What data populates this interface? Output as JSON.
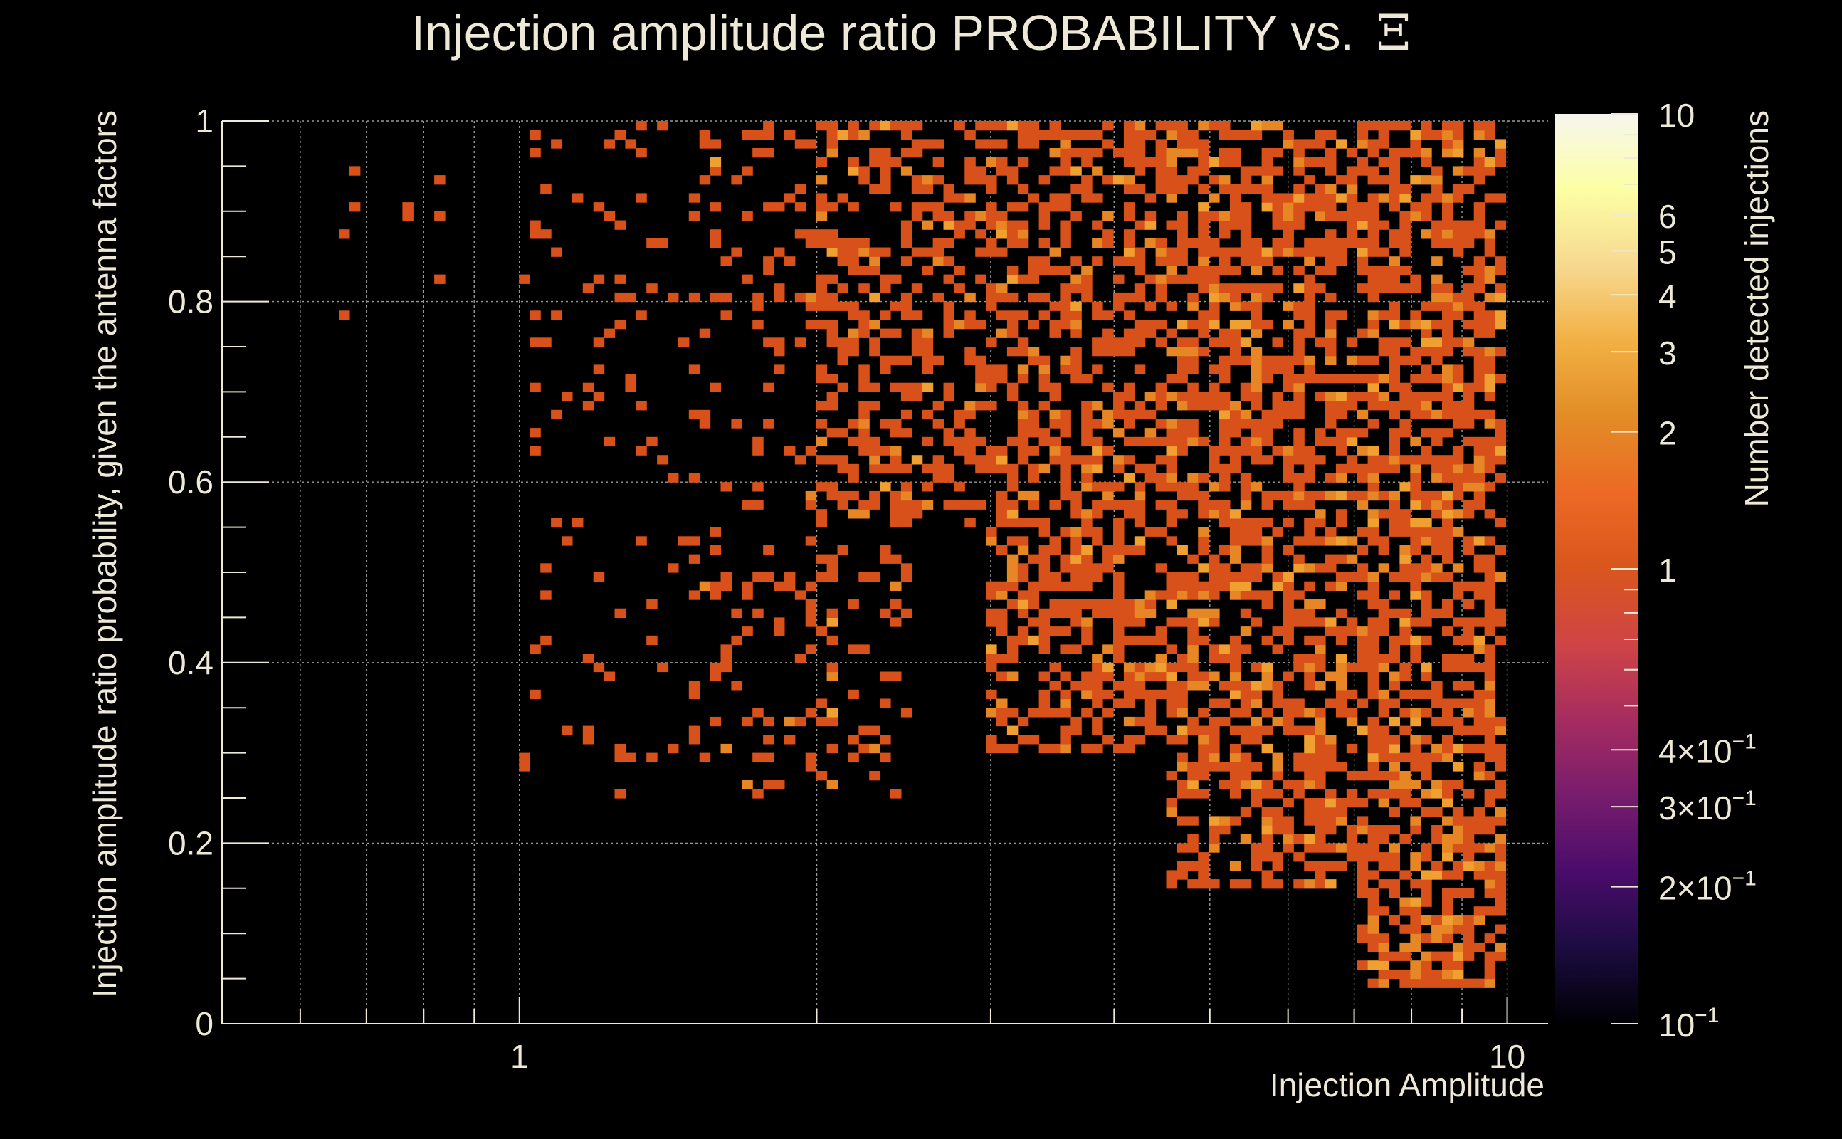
{
  "colors": {
    "background": "#000000",
    "text": "#eee9d6",
    "grid": "#9a9a9a",
    "palette": [
      "#000004",
      "#1b0c41",
      "#4a0c6b",
      "#781c6d",
      "#a52c60",
      "#cf4446",
      "#d9561d",
      "#ed6925",
      "#e28c26",
      "#f2b043",
      "#f7d890",
      "#fcffa4",
      "#f7f6ee"
    ]
  },
  "chart_data": {
    "type": "heatmap",
    "title": "Injection amplitude ratio PROBABILITY vs.",
    "title_symbol": "Ξ",
    "xlabel": "Injection Amplitude",
    "ylabel": "Injection amplitude ratio probability, given the antenna factors",
    "zlabel": "Number detected injections",
    "x_scale": "log",
    "xlim": [
      0.5,
      11
    ],
    "ylim": [
      0,
      1
    ],
    "zlim": [
      0.1,
      10
    ],
    "x_major_ticks": [
      {
        "value": 1,
        "label": "1"
      },
      {
        "value": 10,
        "label": "10"
      }
    ],
    "x_minor_ticks": [
      0.5,
      0.6,
      0.7,
      0.8,
      0.9,
      2,
      3,
      4,
      5,
      6,
      7,
      8,
      9
    ],
    "y_ticks": [
      {
        "value": 0,
        "label": "0"
      },
      {
        "value": 0.2,
        "label": "0.2"
      },
      {
        "value": 0.4,
        "label": "0.4"
      },
      {
        "value": 0.6,
        "label": "0.6"
      },
      {
        "value": 0.8,
        "label": "0.8"
      },
      {
        "value": 1,
        "label": "1"
      }
    ],
    "z_ticks": [
      {
        "value": 10,
        "mantissa": "10",
        "exponent": ""
      },
      {
        "value": 6,
        "mantissa": "6",
        "exponent": ""
      },
      {
        "value": 5,
        "mantissa": "5",
        "exponent": ""
      },
      {
        "value": 4,
        "mantissa": "4",
        "exponent": ""
      },
      {
        "value": 3,
        "mantissa": "3",
        "exponent": ""
      },
      {
        "value": 2,
        "mantissa": "2",
        "exponent": ""
      },
      {
        "value": 1,
        "mantissa": "1",
        "exponent": ""
      },
      {
        "value": 0.4,
        "mantissa": "4×10",
        "exponent": "−1"
      },
      {
        "value": 0.3,
        "mantissa": "3×10",
        "exponent": "−1"
      },
      {
        "value": 0.2,
        "mantissa": "2×10",
        "exponent": "−1"
      },
      {
        "value": 0.1,
        "mantissa": "10",
        "exponent": "−1"
      }
    ],
    "z_minor_ticks": [
      9,
      8,
      7,
      0.9,
      0.8,
      0.7,
      0.6,
      0.5
    ],
    "bins": {
      "x_count": 125,
      "y_count": 100,
      "log_x_min": -0.301,
      "log_x_max": 1.0414
    },
    "regions": [
      {
        "x_from": 0.65,
        "x_to": 0.9,
        "y_from": 0.78,
        "y_to": 0.95,
        "density": 0.04,
        "high_fraction": 0.0
      },
      {
        "x_from": 1.0,
        "x_to": 1.5,
        "y_from": 0.25,
        "y_to": 1.0,
        "density": 0.06,
        "high_fraction": 0.0
      },
      {
        "x_from": 1.5,
        "x_to": 2.5,
        "y_from": 0.25,
        "y_to": 1.0,
        "density": 0.14,
        "high_fraction": 0.06
      },
      {
        "x_from": 2.0,
        "x_to": 3.0,
        "y_from": 0.55,
        "y_to": 1.0,
        "density": 0.4,
        "high_fraction": 0.12
      },
      {
        "x_from": 3.0,
        "x_to": 4.5,
        "y_from": 0.3,
        "y_to": 1.0,
        "density": 0.5,
        "high_fraction": 0.15
      },
      {
        "x_from": 4.5,
        "x_to": 7.0,
        "y_from": 0.15,
        "y_to": 1.0,
        "density": 0.55,
        "high_fraction": 0.2
      },
      {
        "x_from": 7.0,
        "x_to": 10.0,
        "y_from": 0.04,
        "y_to": 1.0,
        "density": 0.6,
        "high_fraction": 0.22
      }
    ],
    "counts": {
      "low": 1,
      "high": [
        2,
        3
      ]
    },
    "seed": 12345
  }
}
